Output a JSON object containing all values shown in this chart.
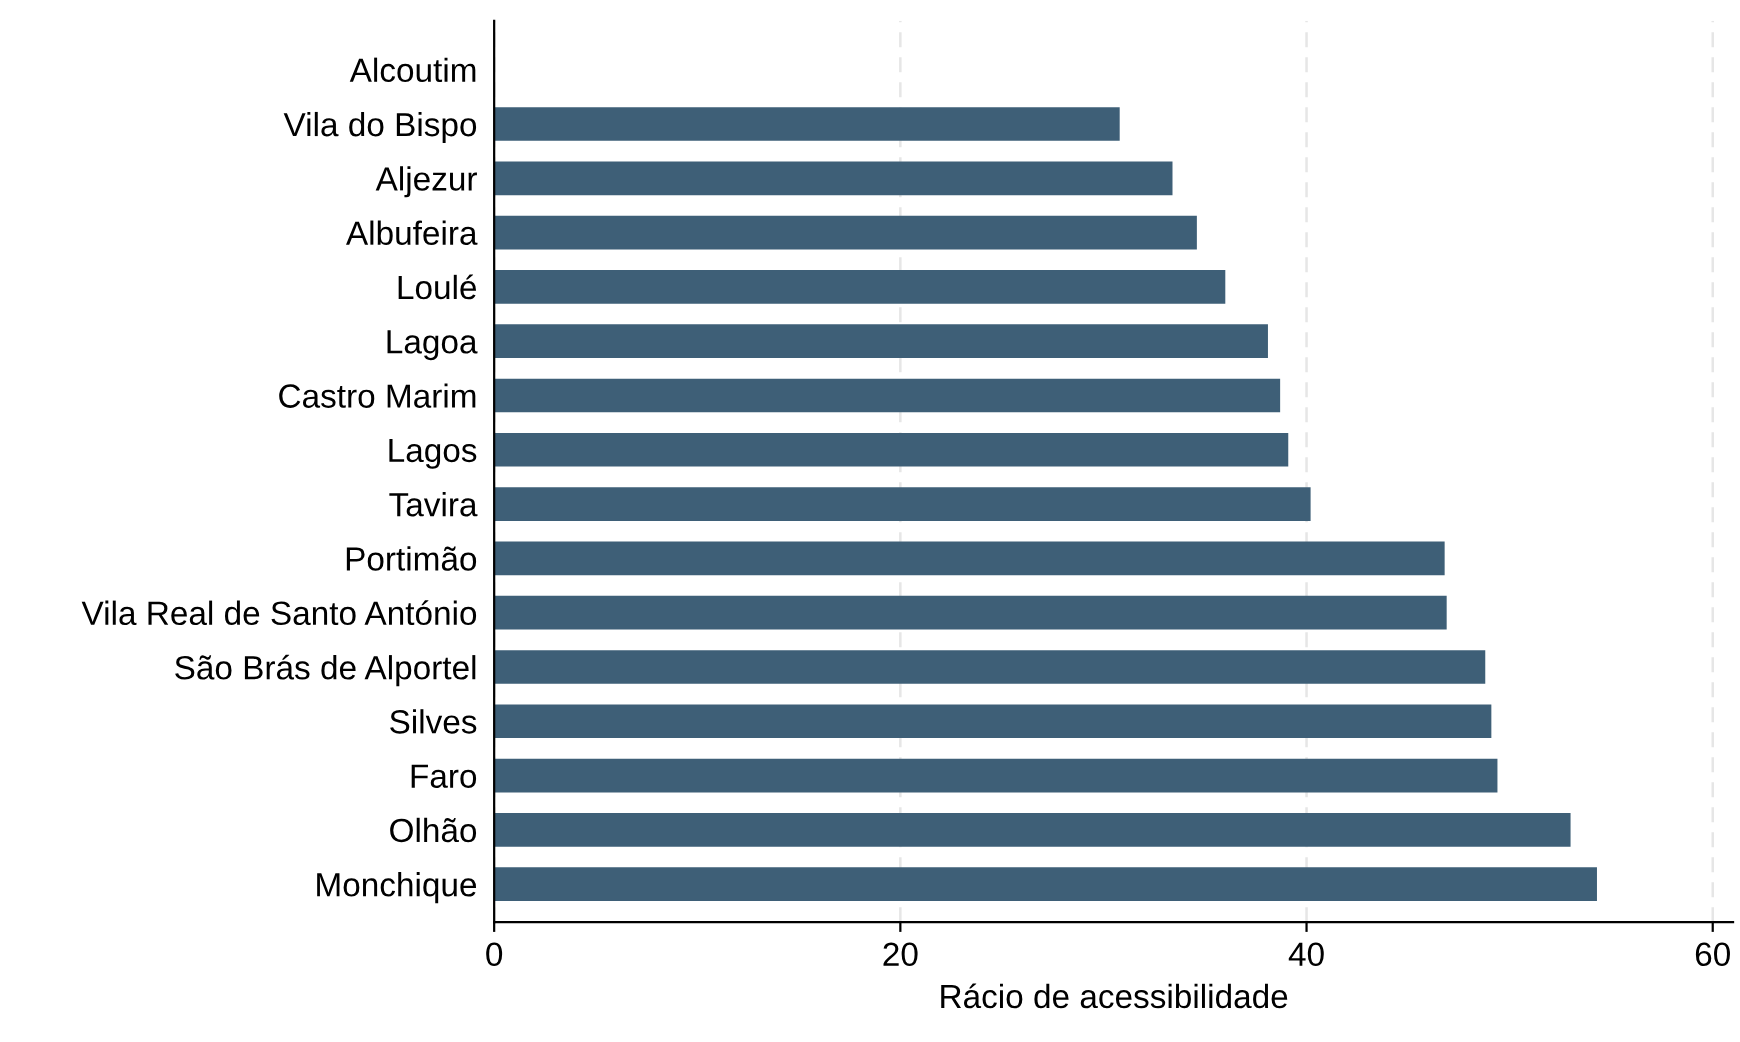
{
  "chart_data": {
    "type": "bar",
    "orientation": "horizontal",
    "xlabel": "Rácio de acessibilidade",
    "categories": [
      "Alcoutim",
      "Vila do Bispo",
      "Aljezur",
      "Albufeira",
      "Loulé",
      "Lagoa",
      "Castro Marim",
      "Lagos",
      "Tavira",
      "Portimão",
      "Vila Real de Santo António",
      "São Brás de Alportel",
      "Silves",
      "Faro",
      "Olhão",
      "Monchique"
    ],
    "values": [
      null,
      30.8,
      33.4,
      34.6,
      36.0,
      38.1,
      38.7,
      39.1,
      40.2,
      46.8,
      46.9,
      48.8,
      49.1,
      49.4,
      53.0,
      54.3
    ],
    "color": "#3e5f77",
    "xlim": [
      0,
      61
    ],
    "xticks": [
      0,
      20,
      40,
      60
    ],
    "grid": "x"
  }
}
